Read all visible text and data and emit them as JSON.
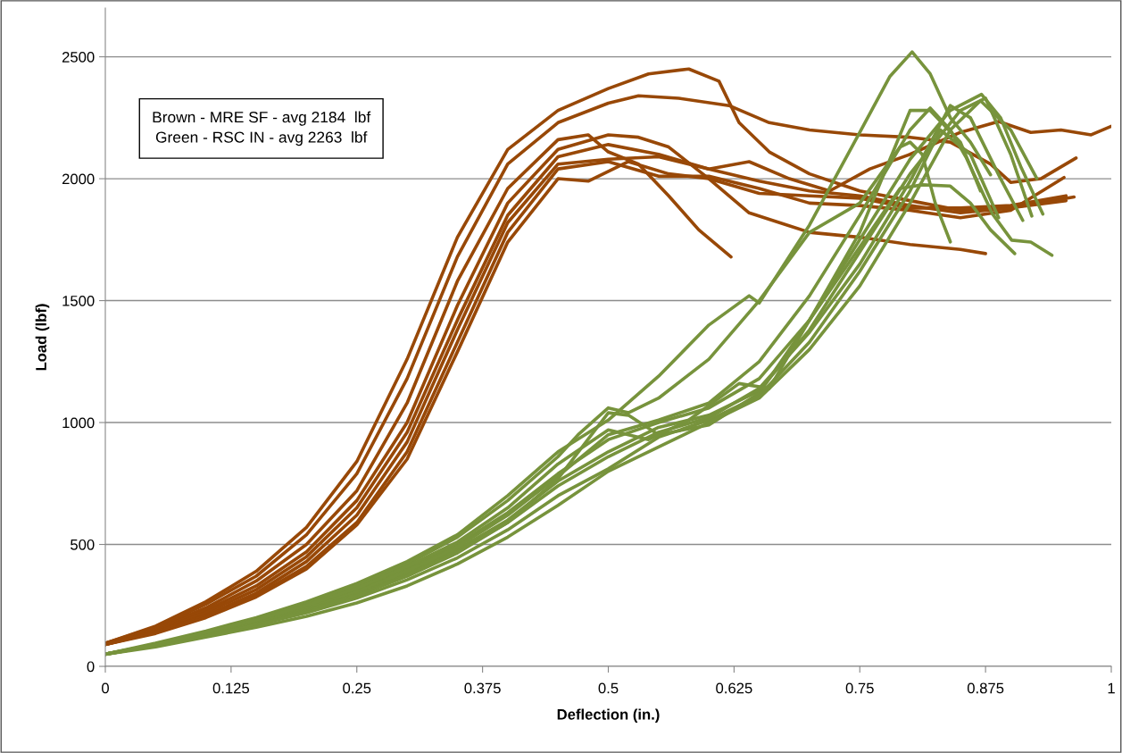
{
  "chart_data": {
    "type": "line",
    "xlabel": "Deflection (in.)",
    "ylabel": "Load (lbf)",
    "annotations": [
      "Brown - MRE SF - avg 2184  lbf",
      "Green - RSC IN - avg 2263  lbf"
    ],
    "xlim": [
      0,
      1
    ],
    "xticks": [
      0,
      0.125,
      0.25,
      0.375,
      0.5,
      0.625,
      0.75,
      0.875,
      1
    ],
    "ylim": [
      0,
      2700
    ],
    "yticks": [
      0,
      500,
      1000,
      1500,
      2000,
      2500
    ],
    "grid": "y",
    "marker": "none",
    "line_style": "solid",
    "series": [
      {
        "color": "#984807",
        "x": [
          0,
          0.05,
          0.1,
          0.15,
          0.2,
          0.25,
          0.3,
          0.35,
          0.4,
          0.45,
          0.5,
          0.54,
          0.58,
          0.61,
          0.63,
          0.66,
          0.7,
          0.75,
          0.8,
          0.85,
          0.9,
          0.963
        ],
        "values": [
          95,
          165,
          265,
          390,
          570,
          840,
          1260,
          1760,
          2120,
          2280,
          2370,
          2430,
          2450,
          2400,
          2230,
          2110,
          2020,
          1950,
          1910,
          1870,
          1880,
          1925
        ]
      },
      {
        "color": "#984807",
        "x": [
          0,
          0.05,
          0.1,
          0.15,
          0.2,
          0.25,
          0.3,
          0.35,
          0.4,
          0.45,
          0.5,
          0.53,
          0.57,
          0.62,
          0.66,
          0.7,
          0.75,
          0.8,
          0.84,
          0.88,
          0.9,
          0.93,
          0.965
        ],
        "values": [
          95,
          160,
          255,
          370,
          540,
          790,
          1180,
          1680,
          2060,
          2230,
          2310,
          2340,
          2330,
          2300,
          2230,
          2200,
          2180,
          2170,
          2150,
          2060,
          1985,
          2000,
          2085
        ]
      },
      {
        "color": "#984807",
        "x": [
          0,
          0.05,
          0.1,
          0.15,
          0.2,
          0.25,
          0.3,
          0.35,
          0.4,
          0.45,
          0.48,
          0.5,
          0.53,
          0.56,
          0.59,
          0.622
        ],
        "values": [
          95,
          155,
          240,
          350,
          500,
          720,
          1080,
          1580,
          1960,
          2160,
          2180,
          2110,
          2060,
          1930,
          1790,
          1679
        ]
      },
      {
        "color": "#984807",
        "x": [
          0,
          0.05,
          0.1,
          0.15,
          0.2,
          0.25,
          0.3,
          0.35,
          0.4,
          0.45,
          0.5,
          0.53,
          0.56,
          0.6,
          0.64,
          0.7,
          0.75,
          0.8,
          0.85,
          0.875
        ],
        "values": [
          90,
          150,
          230,
          330,
          470,
          680,
          1000,
          1480,
          1900,
          2120,
          2180,
          2170,
          2130,
          2000,
          1860,
          1780,
          1760,
          1730,
          1710,
          1693
        ]
      },
      {
        "color": "#984807",
        "x": [
          0,
          0.05,
          0.1,
          0.15,
          0.2,
          0.25,
          0.3,
          0.35,
          0.4,
          0.45,
          0.5,
          0.55,
          0.6,
          0.65,
          0.7,
          0.75,
          0.8,
          0.85,
          0.9,
          0.955
        ],
        "values": [
          90,
          145,
          220,
          315,
          450,
          650,
          960,
          1420,
          1850,
          2090,
          2140,
          2100,
          2040,
          1990,
          1950,
          1930,
          1890,
          1860,
          1880,
          1910
        ]
      },
      {
        "color": "#984807",
        "x": [
          0,
          0.05,
          0.1,
          0.15,
          0.2,
          0.25,
          0.3,
          0.35,
          0.4,
          0.45,
          0.5,
          0.55,
          0.6,
          0.64,
          0.68,
          0.72,
          0.76,
          0.8,
          0.85,
          0.888,
          0.92,
          0.95,
          0.98,
          1.0
        ],
        "values": [
          90,
          140,
          210,
          300,
          430,
          620,
          920,
          1380,
          1820,
          2060,
          2080,
          2090,
          2040,
          2070,
          2000,
          1950,
          2040,
          2100,
          2190,
          2235,
          2190,
          2200,
          2180,
          2215
        ]
      },
      {
        "color": "#984807",
        "x": [
          0,
          0.05,
          0.1,
          0.15,
          0.2,
          0.25,
          0.3,
          0.35,
          0.4,
          0.45,
          0.5,
          0.55,
          0.6,
          0.65,
          0.7,
          0.75,
          0.8,
          0.85,
          0.9,
          0.953
        ],
        "values": [
          90,
          140,
          205,
          290,
          410,
          590,
          880,
          1330,
          1780,
          2040,
          2070,
          2010,
          2010,
          1960,
          1900,
          1890,
          1870,
          1840,
          1870,
          2005
        ]
      },
      {
        "color": "#984807",
        "x": [
          0,
          0.05,
          0.1,
          0.15,
          0.2,
          0.25,
          0.3,
          0.35,
          0.4,
          0.45,
          0.48,
          0.52,
          0.56,
          0.6,
          0.65,
          0.7,
          0.75,
          0.8,
          0.85,
          0.9,
          0.955
        ],
        "values": [
          90,
          135,
          200,
          285,
          400,
          580,
          850,
          1290,
          1740,
          2000,
          1990,
          2070,
          2020,
          2000,
          1940,
          1930,
          1920,
          1880,
          1880,
          1890,
          1930
        ]
      },
      {
        "color": "#77933c",
        "x": [
          0,
          0.05,
          0.1,
          0.15,
          0.2,
          0.25,
          0.3,
          0.35,
          0.4,
          0.45,
          0.5,
          0.55,
          0.6,
          0.64,
          0.65,
          0.7,
          0.75,
          0.78,
          0.802,
          0.82,
          0.84,
          0.86,
          0.88
        ],
        "values": [
          50,
          95,
          145,
          200,
          265,
          340,
          430,
          540,
          700,
          880,
          1010,
          1190,
          1400,
          1520,
          1490,
          1810,
          2190,
          2420,
          2520,
          2430,
          2250,
          2150,
          2016
        ]
      },
      {
        "color": "#77933c",
        "x": [
          0,
          0.05,
          0.1,
          0.15,
          0.2,
          0.25,
          0.3,
          0.35,
          0.4,
          0.45,
          0.47,
          0.5,
          0.52,
          0.55,
          0.6,
          0.65,
          0.7,
          0.75,
          0.79,
          0.8,
          0.812,
          0.825,
          0.84
        ],
        "values": [
          50,
          90,
          140,
          195,
          255,
          330,
          420,
          530,
          680,
          860,
          950,
          1060,
          1040,
          1100,
          1260,
          1500,
          1780,
          1900,
          2130,
          2150,
          2100,
          1900,
          1741
        ]
      },
      {
        "color": "#77933c",
        "x": [
          0,
          0.05,
          0.1,
          0.15,
          0.2,
          0.25,
          0.3,
          0.35,
          0.4,
          0.45,
          0.5,
          0.55,
          0.6,
          0.65,
          0.7,
          0.75,
          0.8,
          0.84,
          0.871,
          0.89,
          0.91,
          0.932
        ],
        "values": [
          50,
          90,
          135,
          185,
          245,
          315,
          400,
          500,
          630,
          790,
          930,
          1000,
          1060,
          1180,
          1420,
          1750,
          2080,
          2280,
          2346,
          2250,
          2050,
          1855
        ]
      },
      {
        "color": "#77933c",
        "x": [
          0,
          0.05,
          0.1,
          0.15,
          0.2,
          0.25,
          0.3,
          0.35,
          0.4,
          0.45,
          0.5,
          0.55,
          0.6,
          0.65,
          0.7,
          0.75,
          0.8,
          0.85,
          0.875,
          0.9,
          0.921
        ],
        "values": [
          50,
          88,
          130,
          180,
          235,
          300,
          385,
          480,
          600,
          760,
          880,
          980,
          1030,
          1130,
          1380,
          1700,
          2020,
          2280,
          2330,
          2100,
          1847
        ]
      },
      {
        "color": "#77933c",
        "x": [
          0,
          0.05,
          0.1,
          0.15,
          0.2,
          0.25,
          0.3,
          0.35,
          0.4,
          0.45,
          0.5,
          0.55,
          0.6,
          0.65,
          0.7,
          0.75,
          0.8,
          0.82,
          0.84,
          0.856,
          0.882,
          0.901,
          0.92,
          0.941
        ],
        "values": [
          50,
          90,
          135,
          185,
          240,
          305,
          390,
          490,
          620,
          780,
          950,
          1010,
          1080,
          1250,
          1520,
          1850,
          2200,
          2290,
          2200,
          2085,
          1855,
          1748,
          1740,
          1686
        ]
      },
      {
        "color": "#77933c",
        "x": [
          0,
          0.05,
          0.1,
          0.15,
          0.2,
          0.25,
          0.3,
          0.35,
          0.4,
          0.45,
          0.5,
          0.52,
          0.55,
          0.6,
          0.65,
          0.7,
          0.75,
          0.79,
          0.812,
          0.84,
          0.86,
          0.88,
          0.904
        ],
        "values": [
          50,
          85,
          130,
          175,
          230,
          295,
          375,
          470,
          590,
          770,
          1040,
          1030,
          950,
          990,
          1120,
          1420,
          1720,
          1960,
          1975,
          1970,
          1900,
          1790,
          1693
        ]
      },
      {
        "color": "#77933c",
        "x": [
          0,
          0.05,
          0.1,
          0.15,
          0.2,
          0.25,
          0.3,
          0.35,
          0.4,
          0.45,
          0.5,
          0.55,
          0.6,
          0.65,
          0.7,
          0.75,
          0.8,
          0.84,
          0.86,
          0.89,
          0.912
        ],
        "values": [
          50,
          85,
          125,
          170,
          225,
          290,
          370,
          465,
          590,
          740,
          860,
          960,
          1020,
          1140,
          1370,
          1650,
          1990,
          2300,
          2250,
          2000,
          1829
        ]
      },
      {
        "color": "#77933c",
        "x": [
          0,
          0.05,
          0.1,
          0.15,
          0.2,
          0.25,
          0.3,
          0.35,
          0.4,
          0.45,
          0.5,
          0.55,
          0.6,
          0.65,
          0.7,
          0.75,
          0.8,
          0.83,
          0.86,
          0.888
        ],
        "values": [
          50,
          85,
          125,
          170,
          220,
          280,
          355,
          445,
          560,
          700,
          810,
          940,
          1010,
          1110,
          1330,
          1620,
          1950,
          2200,
          2100,
          1840
        ]
      },
      {
        "color": "#77933c",
        "x": [
          0,
          0.05,
          0.1,
          0.15,
          0.2,
          0.25,
          0.3,
          0.35,
          0.4,
          0.45,
          0.5,
          0.55,
          0.6,
          0.65,
          0.7,
          0.75,
          0.8,
          0.84,
          0.87,
          0.9,
          0.926
        ],
        "values": [
          50,
          80,
          120,
          160,
          205,
          260,
          330,
          420,
          530,
          660,
          800,
          900,
          1000,
          1100,
          1300,
          1560,
          1900,
          2200,
          2320,
          2200,
          2001
        ]
      },
      {
        "color": "#77933c",
        "x": [
          0,
          0.05,
          0.1,
          0.15,
          0.2,
          0.25,
          0.3,
          0.35,
          0.4,
          0.45,
          0.5,
          0.54,
          0.58,
          0.63,
          0.66,
          0.7,
          0.75,
          0.78,
          0.8,
          0.82,
          0.85,
          0.87
        ],
        "values": [
          50,
          90,
          140,
          190,
          250,
          320,
          410,
          510,
          650,
          830,
          970,
          930,
          1010,
          1160,
          1140,
          1420,
          1780,
          2080,
          2280,
          2280,
          2150,
          1950
        ]
      }
    ]
  }
}
